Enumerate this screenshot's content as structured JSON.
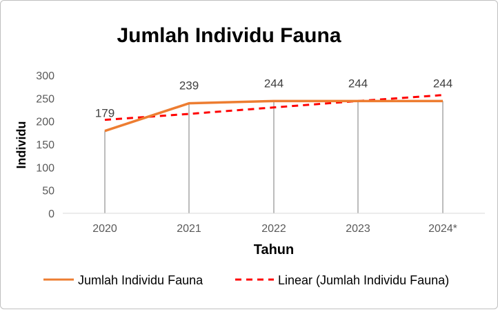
{
  "chart_data": {
    "type": "line",
    "title": "Jumlah Individu Fauna",
    "xlabel": "Tahun",
    "ylabel": "Individu",
    "categories": [
      "2020",
      "2021",
      "2022",
      "2023",
      "2024*"
    ],
    "ylim": [
      0,
      300
    ],
    "yticks": [
      0,
      50,
      100,
      150,
      200,
      250,
      300
    ],
    "grid": "vertical drop lines",
    "legend_position": "bottom",
    "series": [
      {
        "name": "Jumlah Individu Fauna",
        "values": [
          179,
          239,
          244,
          244,
          244
        ],
        "data_labels": [
          "179",
          "239",
          "244",
          "244",
          "244"
        ],
        "color": "#ed7d31",
        "style": "solid"
      }
    ],
    "trendline": {
      "name": "Linear (Jumlah Individu Fauna)",
      "type": "linear",
      "values": [
        203,
        216,
        230,
        244,
        257
      ],
      "color": "#ff0000",
      "style": "dashed"
    }
  }
}
